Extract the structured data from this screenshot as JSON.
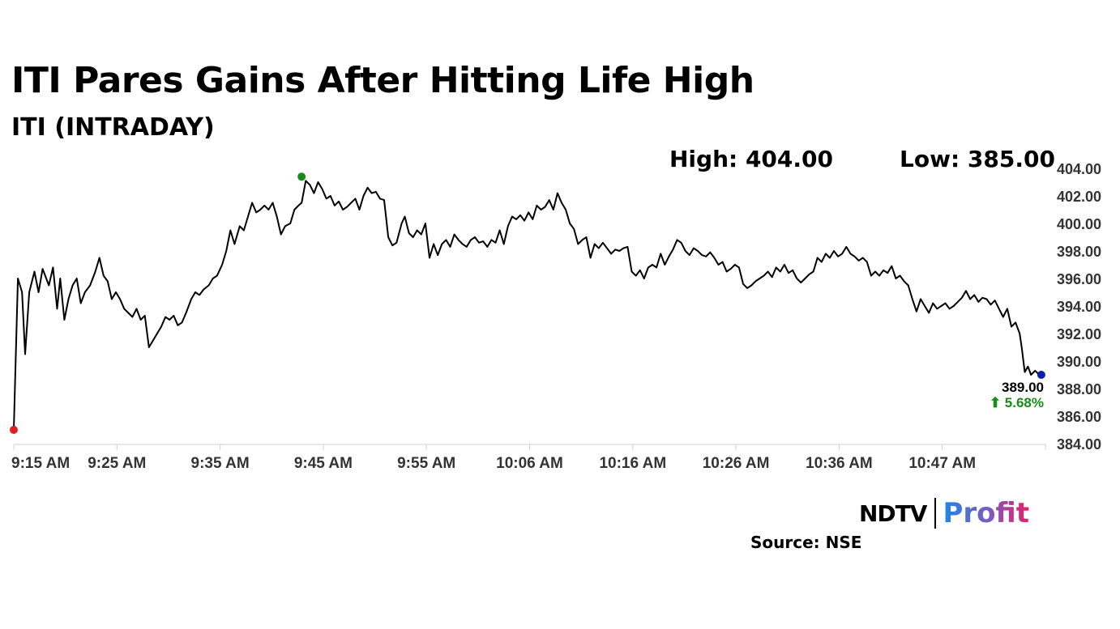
{
  "header": {
    "title": "ITI Pares Gains After Hitting Life High",
    "subtitle": "ITI (INTRADAY)"
  },
  "stats": {
    "high_label": "High: 404.00",
    "low_label": "Low: 385.00"
  },
  "chart_data": {
    "type": "line",
    "title": "ITI Pares Gains After Hitting Life High",
    "subtitle": "ITI (INTRADAY)",
    "xlabel": "",
    "ylabel": "",
    "ylim": [
      384,
      404
    ],
    "xlim": [
      0,
      100
    ],
    "y_ticks": [
      "404.00",
      "402.00",
      "400.00",
      "398.00",
      "396.00",
      "394.00",
      "392.00",
      "390.00",
      "388.00",
      "386.00",
      "384.00"
    ],
    "x_ticks": [
      {
        "t": 0,
        "label": "9:15 AM"
      },
      {
        "t": 10,
        "label": "9:25 AM"
      },
      {
        "t": 20,
        "label": "9:35 AM"
      },
      {
        "t": 30,
        "label": "9:45 AM"
      },
      {
        "t": 40,
        "label": "9:55 AM"
      },
      {
        "t": 50,
        "label": "10:06 AM"
      },
      {
        "t": 60,
        "label": "10:16 AM"
      },
      {
        "t": 70,
        "label": "10:26 AM"
      },
      {
        "t": 80,
        "label": "10:36 AM"
      },
      {
        "t": 90,
        "label": "10:47 AM"
      }
    ],
    "grid": false,
    "series": [
      {
        "color": "#000000",
        "points": [
          [
            0,
            385
          ],
          [
            0.4,
            396
          ],
          [
            0.8,
            395
          ],
          [
            1.1,
            390.5
          ],
          [
            1.5,
            395
          ],
          [
            2,
            396.5
          ],
          [
            2.4,
            395
          ],
          [
            2.8,
            396.7
          ],
          [
            3.4,
            395.5
          ],
          [
            3.8,
            396.8
          ],
          [
            4.2,
            393.8
          ],
          [
            4.5,
            396
          ],
          [
            4.9,
            393
          ],
          [
            5.3,
            394.5
          ],
          [
            5.7,
            395.5
          ],
          [
            6.1,
            396
          ],
          [
            6.5,
            394.2
          ],
          [
            6.9,
            395
          ],
          [
            7.4,
            395.5
          ],
          [
            7.9,
            396.5
          ],
          [
            8.3,
            397.5
          ],
          [
            8.7,
            396.2
          ],
          [
            9.1,
            395.8
          ],
          [
            9.5,
            394.5
          ],
          [
            9.9,
            395
          ],
          [
            10.3,
            394.5
          ],
          [
            10.7,
            393.8
          ],
          [
            11.1,
            393.5
          ],
          [
            11.5,
            393.2
          ],
          [
            11.9,
            393.8
          ],
          [
            12.3,
            393
          ],
          [
            12.7,
            393.3
          ],
          [
            13.1,
            391
          ],
          [
            13.5,
            391.5
          ],
          [
            13.9,
            392
          ],
          [
            14.3,
            392.5
          ],
          [
            14.7,
            393.2
          ],
          [
            15.1,
            393
          ],
          [
            15.5,
            393.3
          ],
          [
            15.9,
            392.6
          ],
          [
            16.3,
            392.8
          ],
          [
            16.7,
            393.5
          ],
          [
            17.2,
            394.5
          ],
          [
            17.6,
            395
          ],
          [
            18,
            394.8
          ],
          [
            18.4,
            395.2
          ],
          [
            18.9,
            395.5
          ],
          [
            19.3,
            396
          ],
          [
            19.7,
            396.2
          ],
          [
            20.2,
            397
          ],
          [
            20.6,
            398
          ],
          [
            21,
            399.5
          ],
          [
            21.4,
            398.5
          ],
          [
            21.9,
            399.8
          ],
          [
            22.3,
            399.5
          ],
          [
            22.7,
            400.5
          ],
          [
            23.1,
            401.5
          ],
          [
            23.5,
            400.8
          ],
          [
            23.9,
            401
          ],
          [
            24.3,
            401.3
          ],
          [
            24.7,
            401
          ],
          [
            25.1,
            401.5
          ],
          [
            25.5,
            400.5
          ],
          [
            25.9,
            399.2
          ],
          [
            26.3,
            399.8
          ],
          [
            26.8,
            400
          ],
          [
            27.2,
            401
          ],
          [
            27.6,
            401.3
          ],
          [
            27.9,
            401.5
          ],
          [
            28.3,
            403.1
          ],
          [
            28.7,
            402.8
          ],
          [
            29.1,
            402.2
          ],
          [
            29.5,
            403
          ],
          [
            29.9,
            402.5
          ],
          [
            30.3,
            401.8
          ],
          [
            30.7,
            402
          ],
          [
            31.1,
            401.3
          ],
          [
            31.5,
            401.6
          ],
          [
            31.9,
            401
          ],
          [
            32.3,
            401.2
          ],
          [
            32.7,
            401.5
          ],
          [
            33.1,
            401.8
          ],
          [
            33.5,
            401
          ],
          [
            33.9,
            402
          ],
          [
            34.3,
            402.6
          ],
          [
            34.7,
            402.2
          ],
          [
            35.1,
            402.3
          ],
          [
            35.5,
            401.8
          ],
          [
            35.9,
            401.7
          ],
          [
            36.3,
            399
          ],
          [
            36.7,
            398.4
          ],
          [
            37.1,
            398.6
          ],
          [
            37.6,
            400
          ],
          [
            37.9,
            400.5
          ],
          [
            38.3,
            399.3
          ],
          [
            38.7,
            399
          ],
          [
            39.1,
            399.5
          ],
          [
            39.5,
            399.2
          ],
          [
            39.9,
            400
          ],
          [
            40.3,
            397.5
          ],
          [
            40.7,
            398.5
          ],
          [
            41.1,
            397.7
          ],
          [
            41.5,
            398.5
          ],
          [
            41.9,
            398.8
          ],
          [
            42.3,
            398.3
          ],
          [
            42.7,
            399.2
          ],
          [
            43.1,
            398.8
          ],
          [
            43.5,
            398.5
          ],
          [
            43.9,
            398.3
          ],
          [
            44.3,
            398.8
          ],
          [
            44.7,
            399
          ],
          [
            45.1,
            398.6
          ],
          [
            45.5,
            398.7
          ],
          [
            45.9,
            398.3
          ],
          [
            46.3,
            398.8
          ],
          [
            46.7,
            398.6
          ],
          [
            47.1,
            399.5
          ],
          [
            47.5,
            398.5
          ],
          [
            47.9,
            399.8
          ],
          [
            48.3,
            400.5
          ],
          [
            48.7,
            400.3
          ],
          [
            49.1,
            400.6
          ],
          [
            49.5,
            400.2
          ],
          [
            49.9,
            400.8
          ],
          [
            50.3,
            400.3
          ],
          [
            50.7,
            401.3
          ],
          [
            51.1,
            401
          ],
          [
            51.5,
            401.2
          ],
          [
            51.9,
            401.7
          ],
          [
            52.3,
            401
          ],
          [
            52.7,
            402.2
          ],
          [
            53.1,
            401.5
          ],
          [
            53.5,
            401
          ],
          [
            53.9,
            400
          ],
          [
            54.3,
            399.6
          ],
          [
            54.7,
            398.5
          ],
          [
            55.1,
            398.8
          ],
          [
            55.5,
            399
          ],
          [
            55.9,
            397.5
          ],
          [
            56.3,
            398.5
          ],
          [
            56.7,
            398.2
          ],
          [
            57.1,
            398.6
          ],
          [
            57.5,
            398.2
          ],
          [
            57.9,
            397.8
          ],
          [
            58.3,
            398.1
          ],
          [
            58.7,
            398
          ],
          [
            59.1,
            398.2
          ],
          [
            59.5,
            398.3
          ],
          [
            59.9,
            396.5
          ],
          [
            60.3,
            396.2
          ],
          [
            60.7,
            396.6
          ],
          [
            61.1,
            396
          ],
          [
            61.5,
            396.8
          ],
          [
            61.9,
            397
          ],
          [
            62.3,
            396.8
          ],
          [
            62.7,
            397.8
          ],
          [
            63.1,
            397
          ],
          [
            63.5,
            397.6
          ],
          [
            63.9,
            398.1
          ],
          [
            64.3,
            398.8
          ],
          [
            64.7,
            398.6
          ],
          [
            65.1,
            398
          ],
          [
            65.5,
            397.7
          ],
          [
            65.9,
            398.2
          ],
          [
            66.3,
            398
          ],
          [
            66.7,
            397.7
          ],
          [
            67.1,
            397.6
          ],
          [
            67.5,
            397.9
          ],
          [
            67.9,
            397.5
          ],
          [
            68.3,
            397
          ],
          [
            68.7,
            397.2
          ],
          [
            69.1,
            396.5
          ],
          [
            69.5,
            396.7
          ],
          [
            69.9,
            397
          ],
          [
            70.3,
            396.8
          ],
          [
            70.7,
            395.6
          ],
          [
            71.1,
            395.3
          ],
          [
            71.5,
            395.5
          ],
          [
            71.9,
            395.8
          ],
          [
            72.3,
            396
          ],
          [
            72.7,
            396.2
          ],
          [
            73.1,
            396.5
          ],
          [
            73.5,
            396.1
          ],
          [
            73.9,
            396.8
          ],
          [
            74.3,
            396.5
          ],
          [
            74.7,
            397
          ],
          [
            75.1,
            396.4
          ],
          [
            75.5,
            396.6
          ],
          [
            75.9,
            396
          ],
          [
            76.3,
            395.7
          ],
          [
            76.7,
            396
          ],
          [
            77.1,
            396.3
          ],
          [
            77.5,
            396.5
          ],
          [
            77.9,
            397.5
          ],
          [
            78.3,
            397.2
          ],
          [
            78.7,
            397.8
          ],
          [
            79.1,
            397.5
          ],
          [
            79.5,
            398
          ],
          [
            79.9,
            397.6
          ],
          [
            80.3,
            397.8
          ],
          [
            80.7,
            398.3
          ],
          [
            81.1,
            397.8
          ],
          [
            81.5,
            397.6
          ],
          [
            81.9,
            397.3
          ],
          [
            82.3,
            397.5
          ],
          [
            82.7,
            397.2
          ],
          [
            83.1,
            396.2
          ],
          [
            83.5,
            396.5
          ],
          [
            83.9,
            396.2
          ],
          [
            84.3,
            396.6
          ],
          [
            84.7,
            396.4
          ],
          [
            85.1,
            396.9
          ],
          [
            85.5,
            396
          ],
          [
            85.9,
            396.2
          ],
          [
            86.3,
            395.8
          ],
          [
            86.7,
            395.5
          ],
          [
            87.1,
            394.5
          ],
          [
            87.5,
            393.6
          ],
          [
            87.9,
            394.5
          ],
          [
            88.3,
            394
          ],
          [
            88.7,
            393.5
          ],
          [
            89.1,
            394.2
          ],
          [
            89.5,
            393.8
          ],
          [
            89.9,
            394
          ],
          [
            90.3,
            394.2
          ],
          [
            90.7,
            393.8
          ],
          [
            91.1,
            394
          ],
          [
            91.5,
            394.3
          ],
          [
            91.9,
            394.6
          ],
          [
            92.3,
            395.1
          ],
          [
            92.7,
            394.5
          ],
          [
            93.1,
            394.8
          ],
          [
            93.5,
            394.3
          ],
          [
            93.9,
            394.6
          ],
          [
            94.3,
            394.5
          ],
          [
            94.7,
            394.1
          ],
          [
            95.1,
            394.4
          ],
          [
            95.5,
            393.8
          ],
          [
            95.9,
            393.2
          ],
          [
            96.3,
            393.8
          ],
          [
            96.7,
            392.5
          ],
          [
            97.1,
            392.8
          ],
          [
            97.5,
            392
          ],
          [
            97.7,
            391
          ],
          [
            98,
            389.2
          ],
          [
            98.3,
            389.6
          ],
          [
            98.6,
            389
          ],
          [
            99,
            389.3
          ],
          [
            99.4,
            389
          ]
        ]
      }
    ],
    "markers": [
      {
        "t": 0,
        "v": 385,
        "color": "#e01e1e"
      },
      {
        "t": 27.9,
        "v": 403.4,
        "color": "#1a8a1a"
      },
      {
        "t": 99.6,
        "v": 389,
        "color": "#0b1fa8"
      }
    ],
    "last_value": {
      "value_label": "389.00",
      "change_label": "⬆ 5.68%",
      "change_color": "#1a8a1a"
    }
  },
  "footer": {
    "logo_ndtv": "NDTV",
    "logo_profit": "Profit",
    "source": "Source: NSE"
  }
}
